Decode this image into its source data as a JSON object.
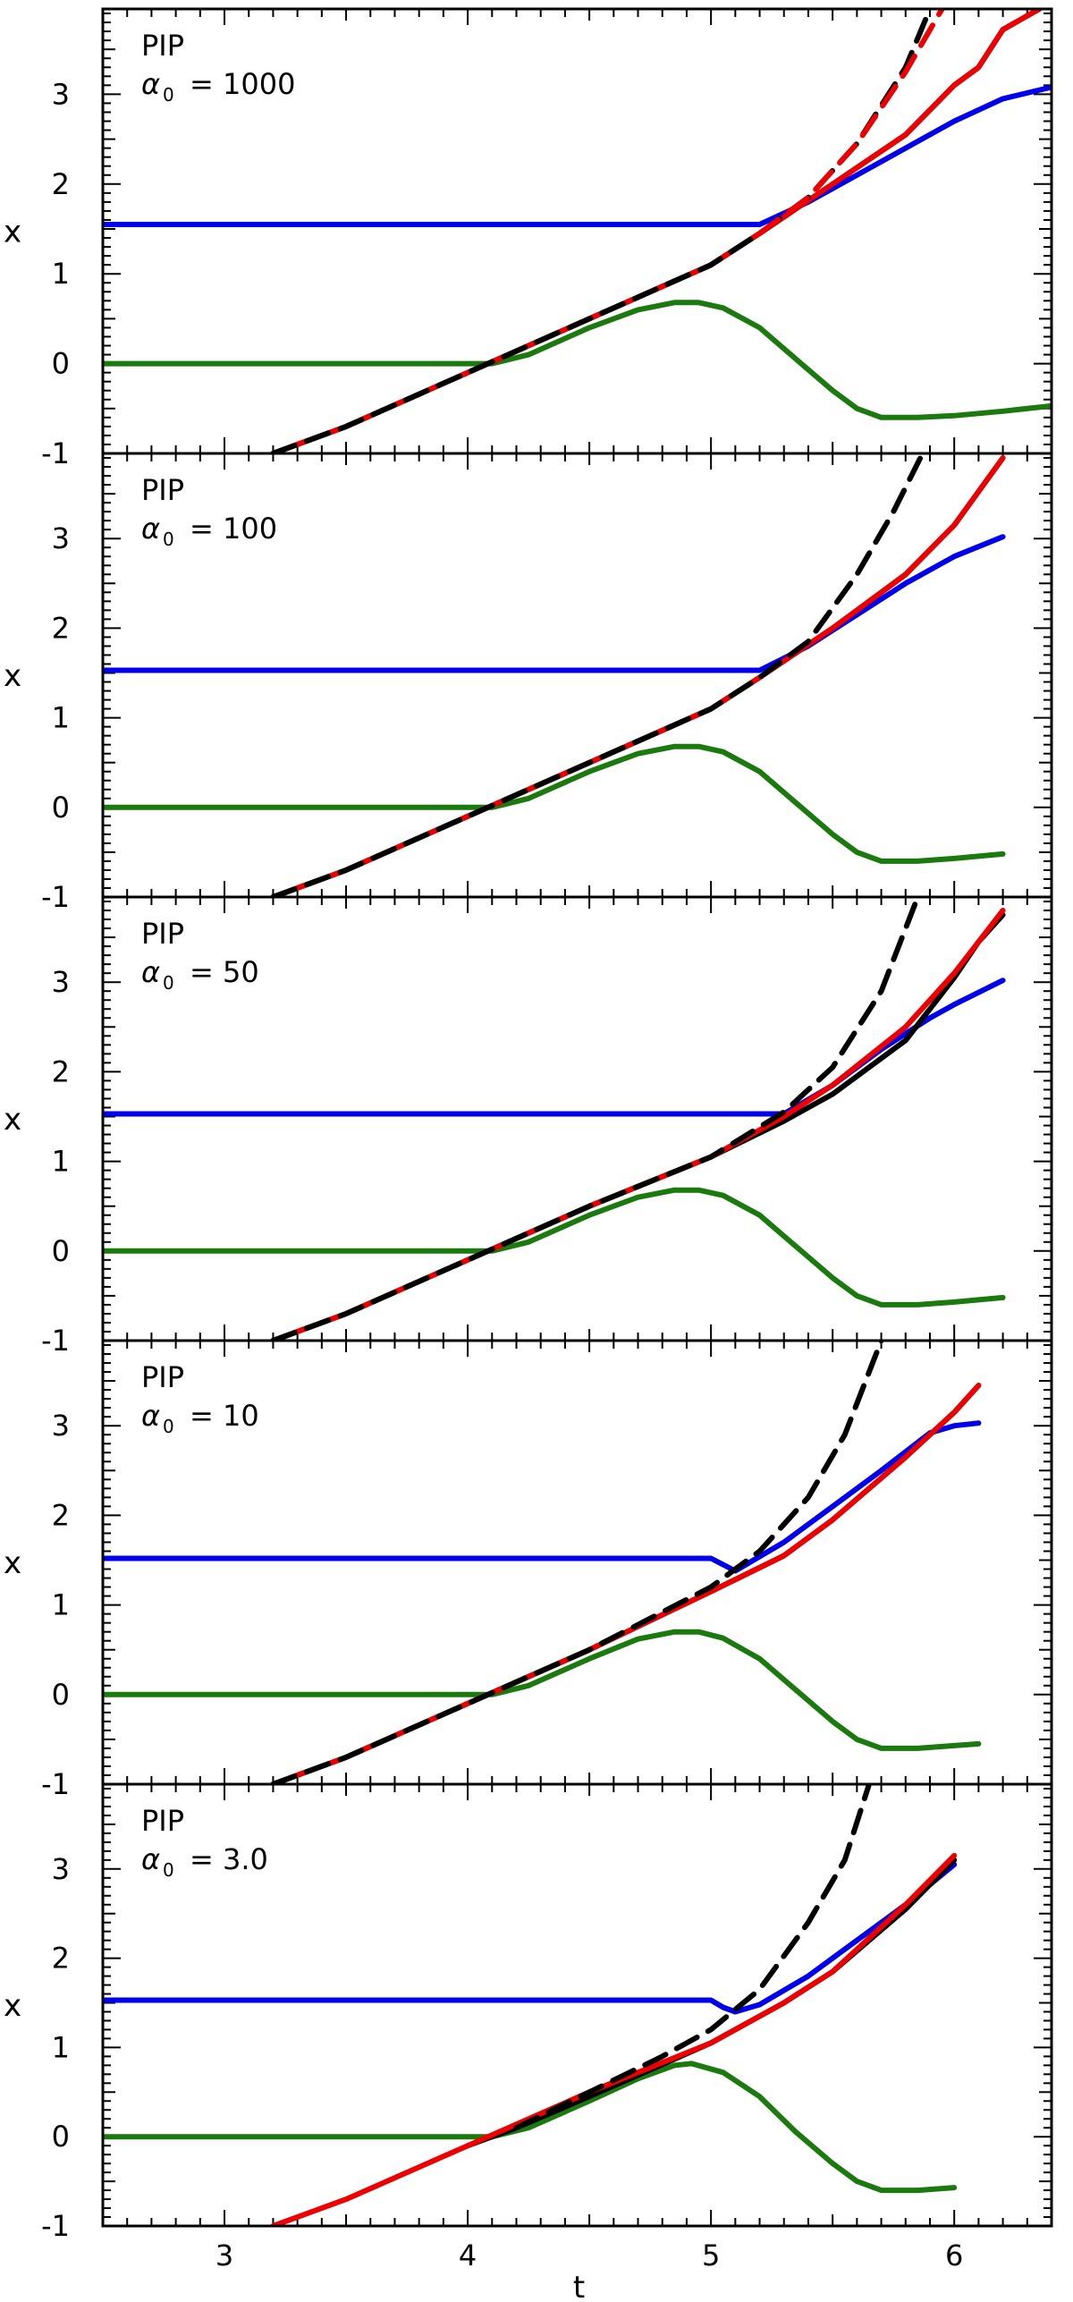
{
  "chart_data": [
    {
      "type": "line",
      "panel_label": "PIP",
      "alpha_symbol": "α",
      "alpha_subscript": "0",
      "alpha_value": "= 1000",
      "xlabel": "t",
      "ylabel": "x",
      "xlim": [
        2.5,
        6.4
      ],
      "ylim": [
        -1,
        3.95
      ],
      "xticks": [
        "3",
        "4",
        "5",
        "6"
      ],
      "yticks": [
        "-1",
        "0",
        "1",
        "2",
        "3"
      ],
      "series": [
        {
          "name": "blue",
          "color": "#0000ee",
          "dash": "solid",
          "x": [
            2.5,
            5.2,
            5.4,
            5.6,
            5.8,
            6.0,
            6.2,
            6.4
          ],
          "y": [
            1.55,
            1.55,
            1.8,
            2.1,
            2.4,
            2.7,
            2.95,
            3.08
          ]
        },
        {
          "name": "green",
          "color": "#1a7a0d",
          "dash": "solid",
          "x": [
            2.5,
            4.1,
            4.25,
            4.5,
            4.7,
            4.85,
            4.95,
            5.05,
            5.2,
            5.35,
            5.5,
            5.6,
            5.7,
            5.85,
            6.0,
            6.2,
            6.4
          ],
          "y": [
            0.0,
            0.0,
            0.1,
            0.4,
            0.6,
            0.68,
            0.68,
            0.62,
            0.4,
            0.05,
            -0.3,
            -0.5,
            -0.6,
            -0.6,
            -0.58,
            -0.53,
            -0.47
          ]
        },
        {
          "name": "black",
          "color": "#000000",
          "dash": "solid",
          "x": [
            3.2,
            3.5,
            4.0,
            4.5,
            5.0,
            5.2,
            5.5,
            5.8,
            6.0,
            6.1,
            6.2,
            6.35
          ],
          "y": [
            -1.0,
            -0.7,
            -0.1,
            0.5,
            1.1,
            1.45,
            2.0,
            2.55,
            3.1,
            3.3,
            3.72,
            3.95
          ]
        },
        {
          "name": "red",
          "color": "#ee0000",
          "dash": "solid",
          "x": [
            3.2,
            3.5,
            4.0,
            4.5,
            5.0,
            5.2,
            5.5,
            5.8,
            6.0,
            6.1,
            6.2,
            6.35
          ],
          "y": [
            -1.0,
            -0.7,
            -0.1,
            0.5,
            1.1,
            1.45,
            2.0,
            2.55,
            3.1,
            3.3,
            3.72,
            3.95
          ]
        },
        {
          "name": "black-dashed",
          "color": "#000000",
          "dash": "dashed",
          "x": [
            3.2,
            3.5,
            4.0,
            4.5,
            5.0,
            5.2,
            5.4,
            5.6,
            5.8,
            5.9
          ],
          "y": [
            -1.0,
            -0.7,
            -0.1,
            0.5,
            1.1,
            1.45,
            1.85,
            2.45,
            3.3,
            3.95
          ]
        },
        {
          "name": "red-dashed",
          "color": "#ee0000",
          "dash": "dashed",
          "x": [
            5.2,
            5.4,
            5.6,
            5.8,
            5.95
          ],
          "y": [
            1.45,
            1.85,
            2.45,
            3.25,
            3.95
          ]
        }
      ]
    },
    {
      "type": "line",
      "panel_label": "PIP",
      "alpha_symbol": "α",
      "alpha_subscript": "0",
      "alpha_value": "= 100",
      "xlabel": "t",
      "ylabel": "x",
      "xlim": [
        2.5,
        6.4
      ],
      "ylim": [
        -1,
        3.95
      ],
      "xticks": [
        "3",
        "4",
        "5",
        "6"
      ],
      "yticks": [
        "-1",
        "0",
        "1",
        "2",
        "3"
      ],
      "series": [
        {
          "name": "blue",
          "color": "#0000ee",
          "dash": "solid",
          "x": [
            2.5,
            5.2,
            5.4,
            5.6,
            5.8,
            6.0,
            6.2
          ],
          "y": [
            1.53,
            1.53,
            1.8,
            2.15,
            2.5,
            2.8,
            3.02
          ]
        },
        {
          "name": "green",
          "color": "#1a7a0d",
          "dash": "solid",
          "x": [
            2.5,
            4.1,
            4.25,
            4.5,
            4.7,
            4.85,
            4.95,
            5.05,
            5.2,
            5.35,
            5.5,
            5.6,
            5.7,
            5.85,
            6.0,
            6.2
          ],
          "y": [
            0.0,
            0.0,
            0.1,
            0.4,
            0.6,
            0.68,
            0.68,
            0.62,
            0.4,
            0.05,
            -0.3,
            -0.5,
            -0.6,
            -0.6,
            -0.57,
            -0.52
          ]
        },
        {
          "name": "black",
          "color": "#000000",
          "dash": "solid",
          "x": [
            3.2,
            3.5,
            4.0,
            4.5,
            5.0,
            5.2,
            5.5,
            5.8,
            6.0,
            6.2
          ],
          "y": [
            -1.0,
            -0.7,
            -0.1,
            0.5,
            1.1,
            1.45,
            2.0,
            2.6,
            3.15,
            3.9
          ]
        },
        {
          "name": "red",
          "color": "#ee0000",
          "dash": "solid",
          "x": [
            3.2,
            3.5,
            4.0,
            4.5,
            5.0,
            5.2,
            5.5,
            5.8,
            6.0,
            6.2
          ],
          "y": [
            -1.0,
            -0.7,
            -0.1,
            0.5,
            1.1,
            1.45,
            2.0,
            2.6,
            3.15,
            3.9
          ]
        },
        {
          "name": "black-dashed",
          "color": "#000000",
          "dash": "dashed",
          "x": [
            3.2,
            3.5,
            4.0,
            4.5,
            5.0,
            5.2,
            5.4,
            5.6,
            5.75,
            5.87
          ],
          "y": [
            -1.0,
            -0.7,
            -0.1,
            0.5,
            1.1,
            1.45,
            1.85,
            2.6,
            3.3,
            3.95
          ]
        }
      ]
    },
    {
      "type": "line",
      "panel_label": "PIP",
      "alpha_symbol": "α",
      "alpha_subscript": "0",
      "alpha_value": "= 50",
      "xlabel": "t",
      "ylabel": "x",
      "xlim": [
        2.5,
        6.4
      ],
      "ylim": [
        -1,
        3.95
      ],
      "xticks": [
        "3",
        "4",
        "5",
        "6"
      ],
      "yticks": [
        "-1",
        "0",
        "1",
        "2",
        "3"
      ],
      "series": [
        {
          "name": "blue",
          "color": "#0000ee",
          "dash": "solid",
          "x": [
            2.5,
            5.3,
            5.5,
            5.7,
            5.9,
            6.0,
            6.2
          ],
          "y": [
            1.53,
            1.53,
            1.85,
            2.25,
            2.6,
            2.75,
            3.02
          ]
        },
        {
          "name": "green",
          "color": "#1a7a0d",
          "dash": "solid",
          "x": [
            2.5,
            4.1,
            4.25,
            4.5,
            4.7,
            4.85,
            4.95,
            5.05,
            5.2,
            5.35,
            5.5,
            5.6,
            5.7,
            5.85,
            6.0,
            6.2
          ],
          "y": [
            0.0,
            0.0,
            0.1,
            0.4,
            0.6,
            0.68,
            0.68,
            0.62,
            0.4,
            0.05,
            -0.3,
            -0.5,
            -0.6,
            -0.6,
            -0.57,
            -0.52
          ]
        },
        {
          "name": "black",
          "color": "#000000",
          "dash": "solid",
          "x": [
            3.2,
            3.5,
            4.0,
            4.5,
            5.0,
            5.3,
            5.5,
            5.8,
            6.0,
            6.1,
            6.2
          ],
          "y": [
            -1.0,
            -0.7,
            -0.1,
            0.5,
            1.05,
            1.45,
            1.75,
            2.35,
            3.05,
            3.45,
            3.75
          ]
        },
        {
          "name": "red",
          "color": "#ee0000",
          "dash": "solid",
          "x": [
            3.2,
            3.5,
            4.0,
            4.5,
            5.0,
            5.3,
            5.5,
            5.8,
            6.0,
            6.2
          ],
          "y": [
            -1.0,
            -0.7,
            -0.1,
            0.5,
            1.05,
            1.5,
            1.85,
            2.5,
            3.1,
            3.8
          ]
        },
        {
          "name": "black-dashed",
          "color": "#000000",
          "dash": "dashed",
          "x": [
            3.2,
            3.5,
            4.0,
            4.5,
            5.0,
            5.3,
            5.5,
            5.7,
            5.85
          ],
          "y": [
            -1.0,
            -0.7,
            -0.1,
            0.5,
            1.05,
            1.55,
            2.05,
            2.9,
            3.95
          ]
        }
      ]
    },
    {
      "type": "line",
      "panel_label": "PIP",
      "alpha_symbol": "α",
      "alpha_subscript": "0",
      "alpha_value": "= 10",
      "xlabel": "t",
      "ylabel": "x",
      "xlim": [
        2.5,
        6.4
      ],
      "ylim": [
        -1,
        3.95
      ],
      "xticks": [
        "3",
        "4",
        "5",
        "6"
      ],
      "yticks": [
        "-1",
        "0",
        "1",
        "2",
        "3"
      ],
      "series": [
        {
          "name": "blue",
          "color": "#0000ee",
          "dash": "solid",
          "x": [
            2.5,
            5.0,
            5.1,
            5.3,
            5.5,
            5.7,
            5.9,
            6.0,
            6.1
          ],
          "y": [
            1.52,
            1.52,
            1.38,
            1.7,
            2.1,
            2.5,
            2.92,
            3.0,
            3.03
          ]
        },
        {
          "name": "green",
          "color": "#1a7a0d",
          "dash": "solid",
          "x": [
            2.5,
            4.1,
            4.25,
            4.5,
            4.7,
            4.85,
            4.95,
            5.05,
            5.2,
            5.35,
            5.5,
            5.6,
            5.7,
            5.85,
            6.1
          ],
          "y": [
            0.0,
            0.0,
            0.1,
            0.4,
            0.62,
            0.7,
            0.7,
            0.63,
            0.4,
            0.05,
            -0.3,
            -0.5,
            -0.6,
            -0.6,
            -0.55
          ]
        },
        {
          "name": "black",
          "color": "#000000",
          "dash": "solid",
          "x": [
            3.2,
            3.5,
            4.0,
            4.5,
            5.0,
            5.3,
            5.5,
            5.8,
            6.0,
            6.1
          ],
          "y": [
            -1.0,
            -0.7,
            -0.1,
            0.5,
            1.15,
            1.55,
            1.95,
            2.65,
            3.15,
            3.45
          ]
        },
        {
          "name": "red",
          "color": "#ee0000",
          "dash": "solid",
          "x": [
            3.2,
            3.5,
            4.0,
            4.5,
            5.0,
            5.3,
            5.5,
            5.8,
            6.0,
            6.1
          ],
          "y": [
            -1.0,
            -0.7,
            -0.1,
            0.5,
            1.15,
            1.55,
            1.95,
            2.65,
            3.15,
            3.45
          ]
        },
        {
          "name": "black-dashed",
          "color": "#000000",
          "dash": "dashed",
          "x": [
            3.2,
            3.5,
            4.0,
            4.5,
            5.0,
            5.2,
            5.4,
            5.55,
            5.7
          ],
          "y": [
            -1.0,
            -0.7,
            -0.1,
            0.5,
            1.2,
            1.6,
            2.2,
            2.9,
            3.95
          ]
        }
      ]
    },
    {
      "type": "line",
      "panel_label": "PIP",
      "alpha_symbol": "α",
      "alpha_subscript": "0",
      "alpha_value": "= 3.0",
      "xlabel": "t",
      "ylabel": "x",
      "xlim": [
        2.5,
        6.4
      ],
      "ylim": [
        -1,
        3.95
      ],
      "xticks": [
        "3",
        "4",
        "5",
        "6"
      ],
      "yticks": [
        "-1",
        "0",
        "1",
        "2",
        "3"
      ],
      "series": [
        {
          "name": "blue",
          "color": "#0000ee",
          "dash": "solid",
          "x": [
            2.5,
            5.0,
            5.05,
            5.1,
            5.2,
            5.4,
            5.6,
            5.8,
            6.0
          ],
          "y": [
            1.53,
            1.53,
            1.45,
            1.4,
            1.48,
            1.8,
            2.2,
            2.6,
            3.05
          ]
        },
        {
          "name": "green",
          "color": "#1a7a0d",
          "dash": "solid",
          "x": [
            2.5,
            4.1,
            4.25,
            4.5,
            4.7,
            4.85,
            4.92,
            5.05,
            5.2,
            5.35,
            5.5,
            5.6,
            5.7,
            5.85,
            6.0
          ],
          "y": [
            0.0,
            0.0,
            0.1,
            0.4,
            0.65,
            0.8,
            0.82,
            0.72,
            0.45,
            0.05,
            -0.3,
            -0.5,
            -0.6,
            -0.6,
            -0.57
          ]
        },
        {
          "name": "black",
          "color": "#000000",
          "dash": "solid",
          "x": [
            4.0,
            4.2,
            4.5,
            5.0,
            5.3,
            5.5,
            5.8,
            6.0
          ],
          "y": [
            -0.1,
            0.1,
            0.45,
            1.05,
            1.5,
            1.85,
            2.55,
            3.1
          ]
        },
        {
          "name": "red",
          "color": "#ee0000",
          "dash": "solid",
          "x": [
            3.2,
            3.5,
            4.0,
            4.5,
            5.0,
            5.3,
            5.5,
            5.8,
            6.0
          ],
          "y": [
            -1.0,
            -0.7,
            -0.1,
            0.5,
            1.05,
            1.5,
            1.85,
            2.6,
            3.15
          ]
        },
        {
          "name": "black-dashed",
          "color": "#000000",
          "dash": "dashed",
          "x": [
            4.2,
            4.5,
            4.8,
            5.0,
            5.2,
            5.4,
            5.55,
            5.65
          ],
          "y": [
            0.1,
            0.5,
            0.9,
            1.2,
            1.65,
            2.4,
            3.1,
            3.95
          ]
        }
      ]
    }
  ]
}
